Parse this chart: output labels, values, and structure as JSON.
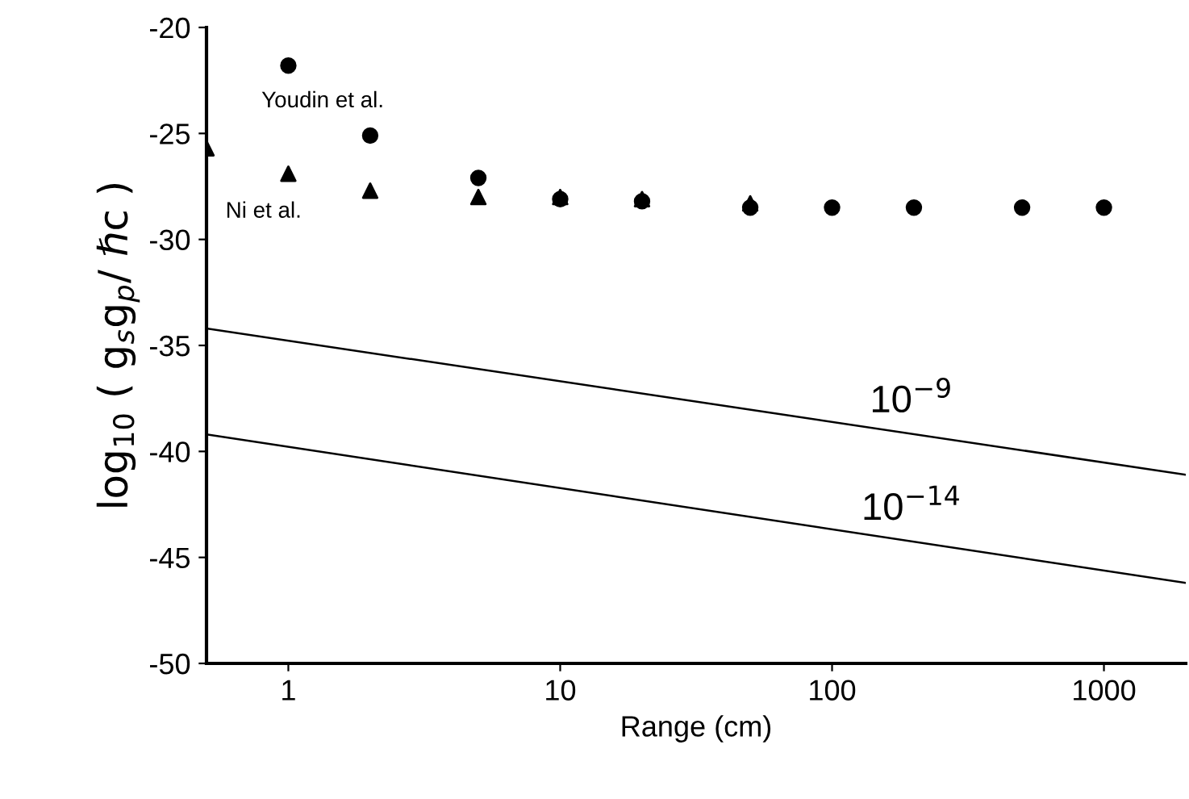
{
  "chart_data": {
    "type": "scatter",
    "xlabel": "Range (cm)",
    "ylabel": "log$_{10}$ ( g$_{s}$g$_{p}$/ ℏc )",
    "log": "x",
    "xlim": [
      0.5,
      2000
    ],
    "ylim": [
      -50,
      -20
    ],
    "xticks": [
      1,
      10,
      100,
      1000
    ],
    "yticks": [
      -50,
      -45,
      -40,
      -35,
      -30,
      -25,
      -20
    ],
    "grid": false,
    "legend": false,
    "series": [
      {
        "name": "Youdin et al.",
        "marker": "circle",
        "color": "#000000",
        "x": [
          1,
          2,
          5,
          10,
          20,
          50,
          100,
          200,
          500,
          1000
        ],
        "values": [
          -21.8,
          -25.1,
          -27.1,
          -28.1,
          -28.2,
          -28.5,
          -28.5,
          -28.5,
          -28.5,
          -28.5
        ]
      },
      {
        "name": "Ni et al.",
        "marker": "triangle",
        "color": "#000000",
        "x": [
          0.5,
          1,
          2,
          5,
          10,
          20,
          50
        ],
        "values": [
          -25.7,
          -26.9,
          -27.7,
          -28.0,
          -28.0,
          -28.1,
          -28.3
        ]
      },
      {
        "name": "10$^{−9}$",
        "type": "line",
        "color": "#000000",
        "x": [
          0.5,
          2000
        ],
        "values": [
          -34.2,
          -41.1
        ]
      },
      {
        "name": "10$^{−14}$",
        "type": "line",
        "color": "#000000",
        "x": [
          0.5,
          2000
        ],
        "values": [
          -39.2,
          -46.2
        ]
      }
    ]
  }
}
